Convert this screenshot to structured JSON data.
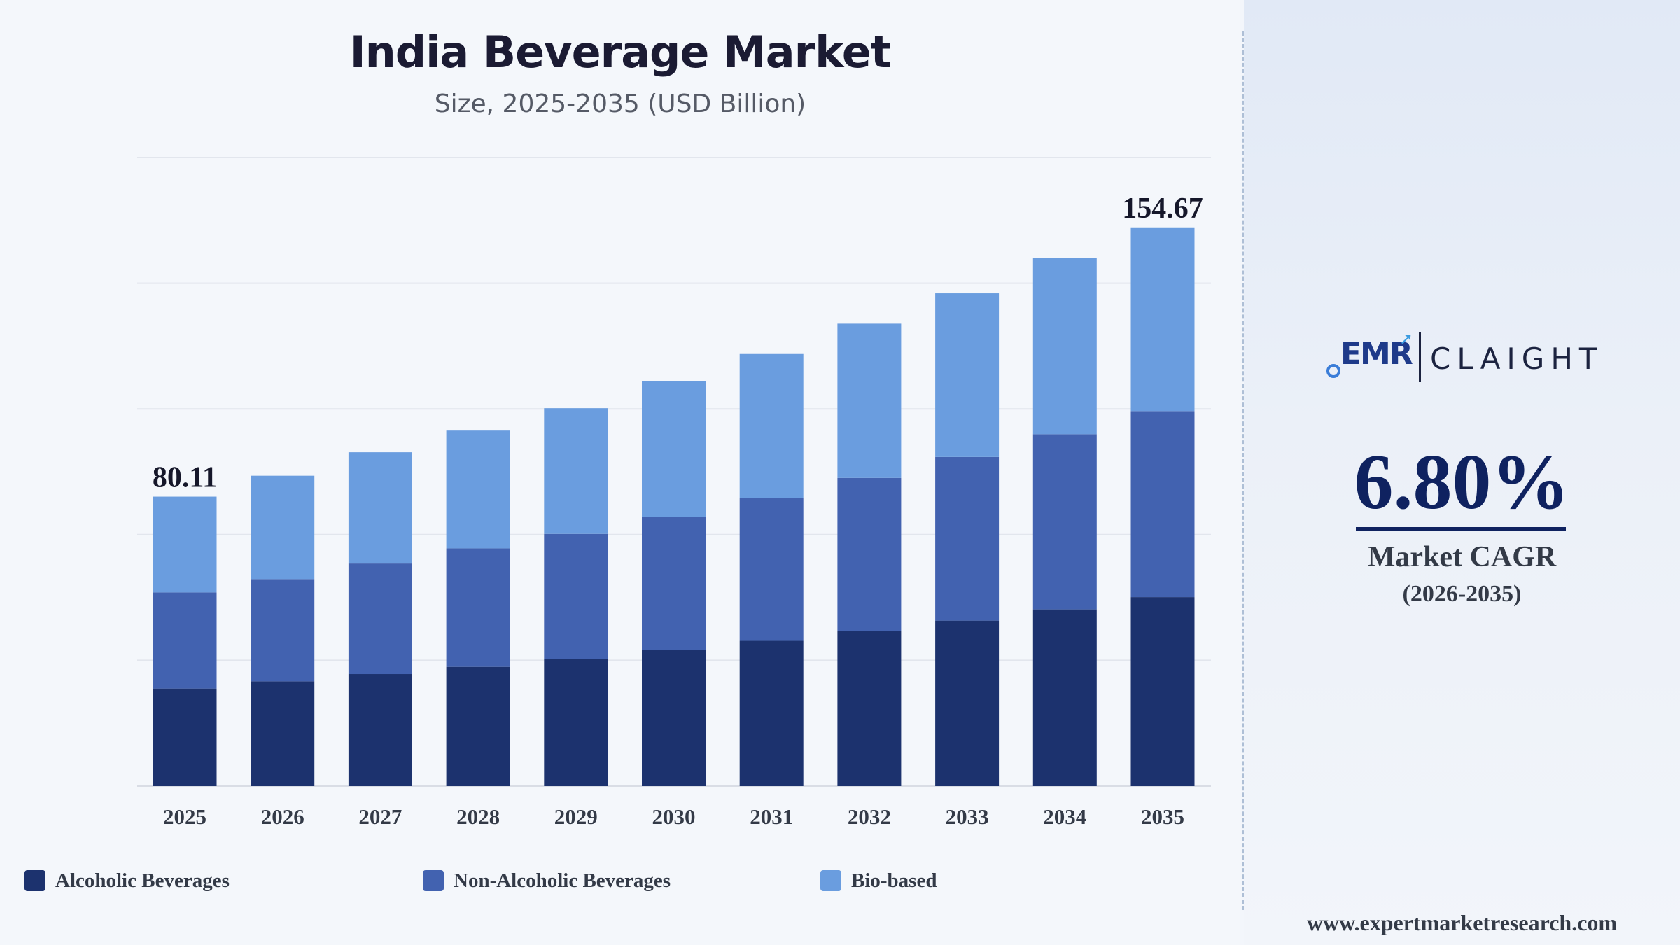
{
  "header": {
    "title": "India Beverage Market",
    "subtitle": "Size, 2025-2035 (USD Billion)"
  },
  "chart_data": {
    "type": "bar",
    "stacked": true,
    "categories": [
      "2025",
      "2026",
      "2027",
      "2028",
      "2029",
      "2030",
      "2031",
      "2032",
      "2033",
      "2034",
      "2035"
    ],
    "series": [
      {
        "name": "Alcoholic Beverages",
        "color": "#1c326e",
        "values": [
          27.0,
          29.0,
          31.0,
          33.0,
          35.2,
          37.6,
          40.2,
          42.9,
          45.8,
          48.9,
          52.3
        ]
      },
      {
        "name": "Non-Alcoholic Beverages",
        "color": "#4262b0",
        "values": [
          26.6,
          28.3,
          30.6,
          32.8,
          34.6,
          37.0,
          39.6,
          42.4,
          45.3,
          48.5,
          51.5
        ]
      },
      {
        "name": "Bio-based",
        "color": "#6a9ddf",
        "values": [
          26.51,
          28.6,
          30.8,
          32.6,
          34.8,
          37.5,
          39.8,
          42.7,
          45.3,
          48.7,
          50.87
        ]
      }
    ],
    "data_labels": [
      {
        "category": "2025",
        "text": "80.11"
      },
      {
        "category": "2035",
        "text": "154.67"
      }
    ],
    "ylim": [
      0,
      174
    ],
    "grid": true,
    "legend_position": "bottom"
  },
  "cagr": {
    "value": "6.80%",
    "label": "Market CAGR",
    "period": "(2026-2035)"
  },
  "logo": {
    "left": "EMR",
    "right": "CLAIGHT"
  },
  "footer": {
    "website": "www.expertmarketresearch.com"
  },
  "colors": {
    "title": "#1b1b33",
    "cagr": "#0f2260",
    "gridline": "#e2e6ed"
  }
}
